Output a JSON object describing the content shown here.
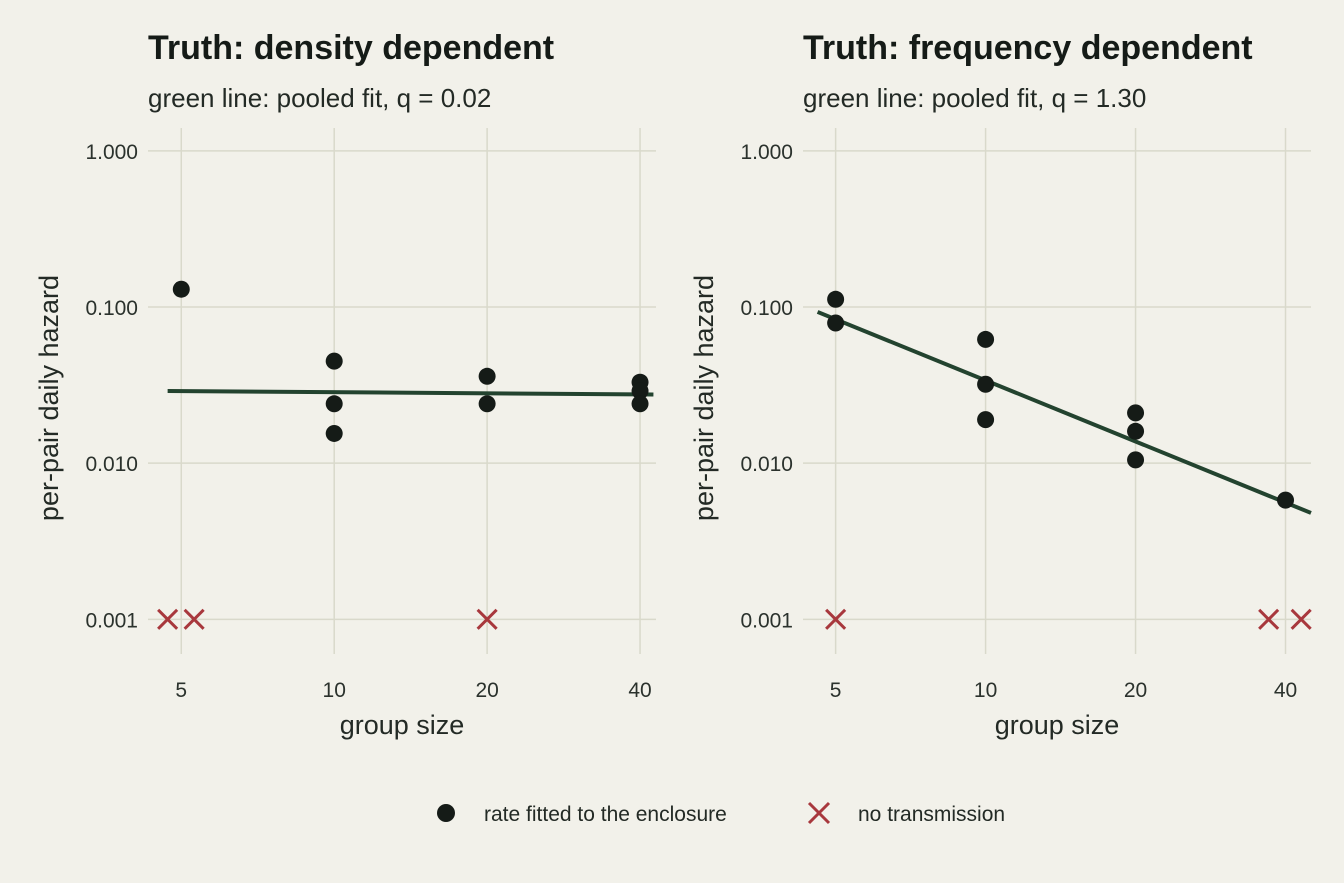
{
  "colors": {
    "background": "#f2f1ea",
    "grid": "#d9d9cb",
    "point": "#151b17",
    "fit_line": "#23432f",
    "no_transmission": "#a8383d"
  },
  "legend": {
    "placement": "bottom",
    "items": [
      {
        "label": "rate fitted to the enclosure",
        "icon": "filled-circle-marker",
        "color": "#151b17"
      },
      {
        "label": "no transmission",
        "icon": "x-cross-marker",
        "color": "#a8383d"
      }
    ]
  },
  "chart_data": [
    {
      "type": "scatter",
      "title": "Truth: density dependent",
      "subtitle": "green line: pooled fit, q = 0.02",
      "xlabel": "group size",
      "ylabel": "per-pair daily hazard",
      "x_scale": "log",
      "y_scale": "log",
      "xlim": [
        4.3,
        43
      ],
      "ylim": [
        0.0006,
        1.4
      ],
      "x_ticks": [
        5,
        10,
        20,
        40
      ],
      "x_tick_labels": [
        "5",
        "10",
        "20",
        "40"
      ],
      "y_ticks": [
        0.001,
        0.01,
        0.1,
        1
      ],
      "y_tick_labels": [
        "0.001",
        "0.010",
        "0.100",
        "1.000"
      ],
      "grid": true,
      "series": [
        {
          "name": "rate fitted to the enclosure",
          "marker": "point",
          "x": [
            5,
            10,
            10,
            10,
            20,
            20,
            40,
            40,
            40
          ],
          "y": [
            0.13,
            0.045,
            0.024,
            0.0155,
            0.036,
            0.024,
            0.033,
            0.029,
            0.024
          ]
        },
        {
          "name": "no transmission",
          "marker": "cross",
          "x": [
            4.7,
            5.3,
            20
          ],
          "y": [
            0.001,
            0.001,
            0.001
          ]
        },
        {
          "marker": "line",
          "x": [
            4.7,
            42.5
          ],
          "y": [
            0.029,
            0.0275
          ]
        }
      ]
    },
    {
      "type": "scatter",
      "title": "Truth: frequency dependent",
      "subtitle": "green line: pooled fit, q = 1.30",
      "xlabel": "group size",
      "ylabel": "per-pair daily hazard",
      "x_scale": "log",
      "y_scale": "log",
      "xlim": [
        4.3,
        45
      ],
      "ylim": [
        0.0006,
        1.4
      ],
      "x_ticks": [
        5,
        10,
        20,
        40
      ],
      "x_tick_labels": [
        "5",
        "10",
        "20",
        "40"
      ],
      "y_ticks": [
        0.001,
        0.01,
        0.1,
        1
      ],
      "y_tick_labels": [
        "0.001",
        "0.010",
        "0.100",
        "1.000"
      ],
      "grid": true,
      "series": [
        {
          "name": "rate fitted to the enclosure",
          "marker": "point",
          "x": [
            5,
            5,
            10,
            10,
            10,
            20,
            20,
            20,
            40
          ],
          "y": [
            0.112,
            0.079,
            0.062,
            0.032,
            0.019,
            0.021,
            0.016,
            0.0105,
            0.0058
          ]
        },
        {
          "name": "no transmission",
          "marker": "cross",
          "x": [
            5,
            37,
            43
          ],
          "y": [
            0.001,
            0.001,
            0.001
          ]
        },
        {
          "marker": "line",
          "x": [
            4.6,
            45
          ],
          "y": [
            0.093,
            0.0048
          ]
        }
      ]
    }
  ]
}
